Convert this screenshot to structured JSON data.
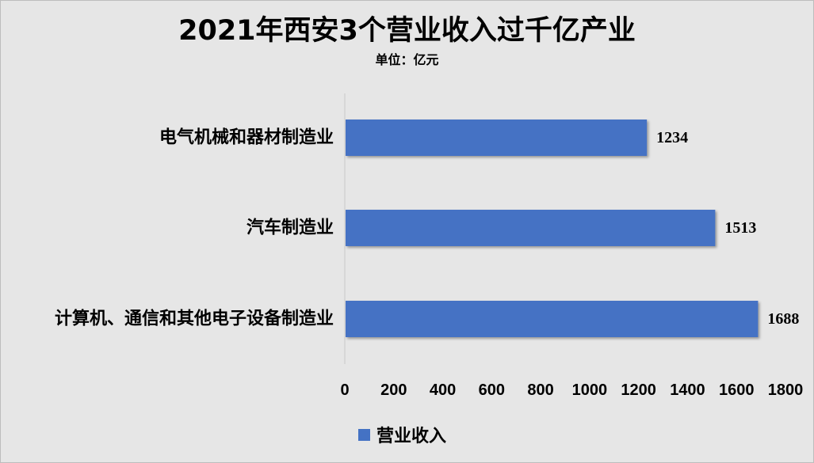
{
  "chart_data": {
    "type": "bar",
    "orientation": "horizontal",
    "title": "2021年西安3个营业收入过千亿产业",
    "subtitle": "单位：亿元",
    "categories": [
      "电气机械和器材制造业",
      "汽车制造业",
      "计算机、通信和其他电子设备制造业"
    ],
    "series": [
      {
        "name": "营业收入",
        "values": [
          1234,
          1513,
          1688
        ],
        "color": "#4472c4"
      }
    ],
    "xlim": [
      0,
      1800
    ],
    "xticks": [
      "0",
      "200",
      "400",
      "600",
      "800",
      "1000",
      "1200",
      "1400",
      "1600",
      "1800"
    ],
    "grid": false,
    "legend_position": "bottom",
    "data_labels": [
      "1234",
      "1513",
      "1688"
    ]
  }
}
